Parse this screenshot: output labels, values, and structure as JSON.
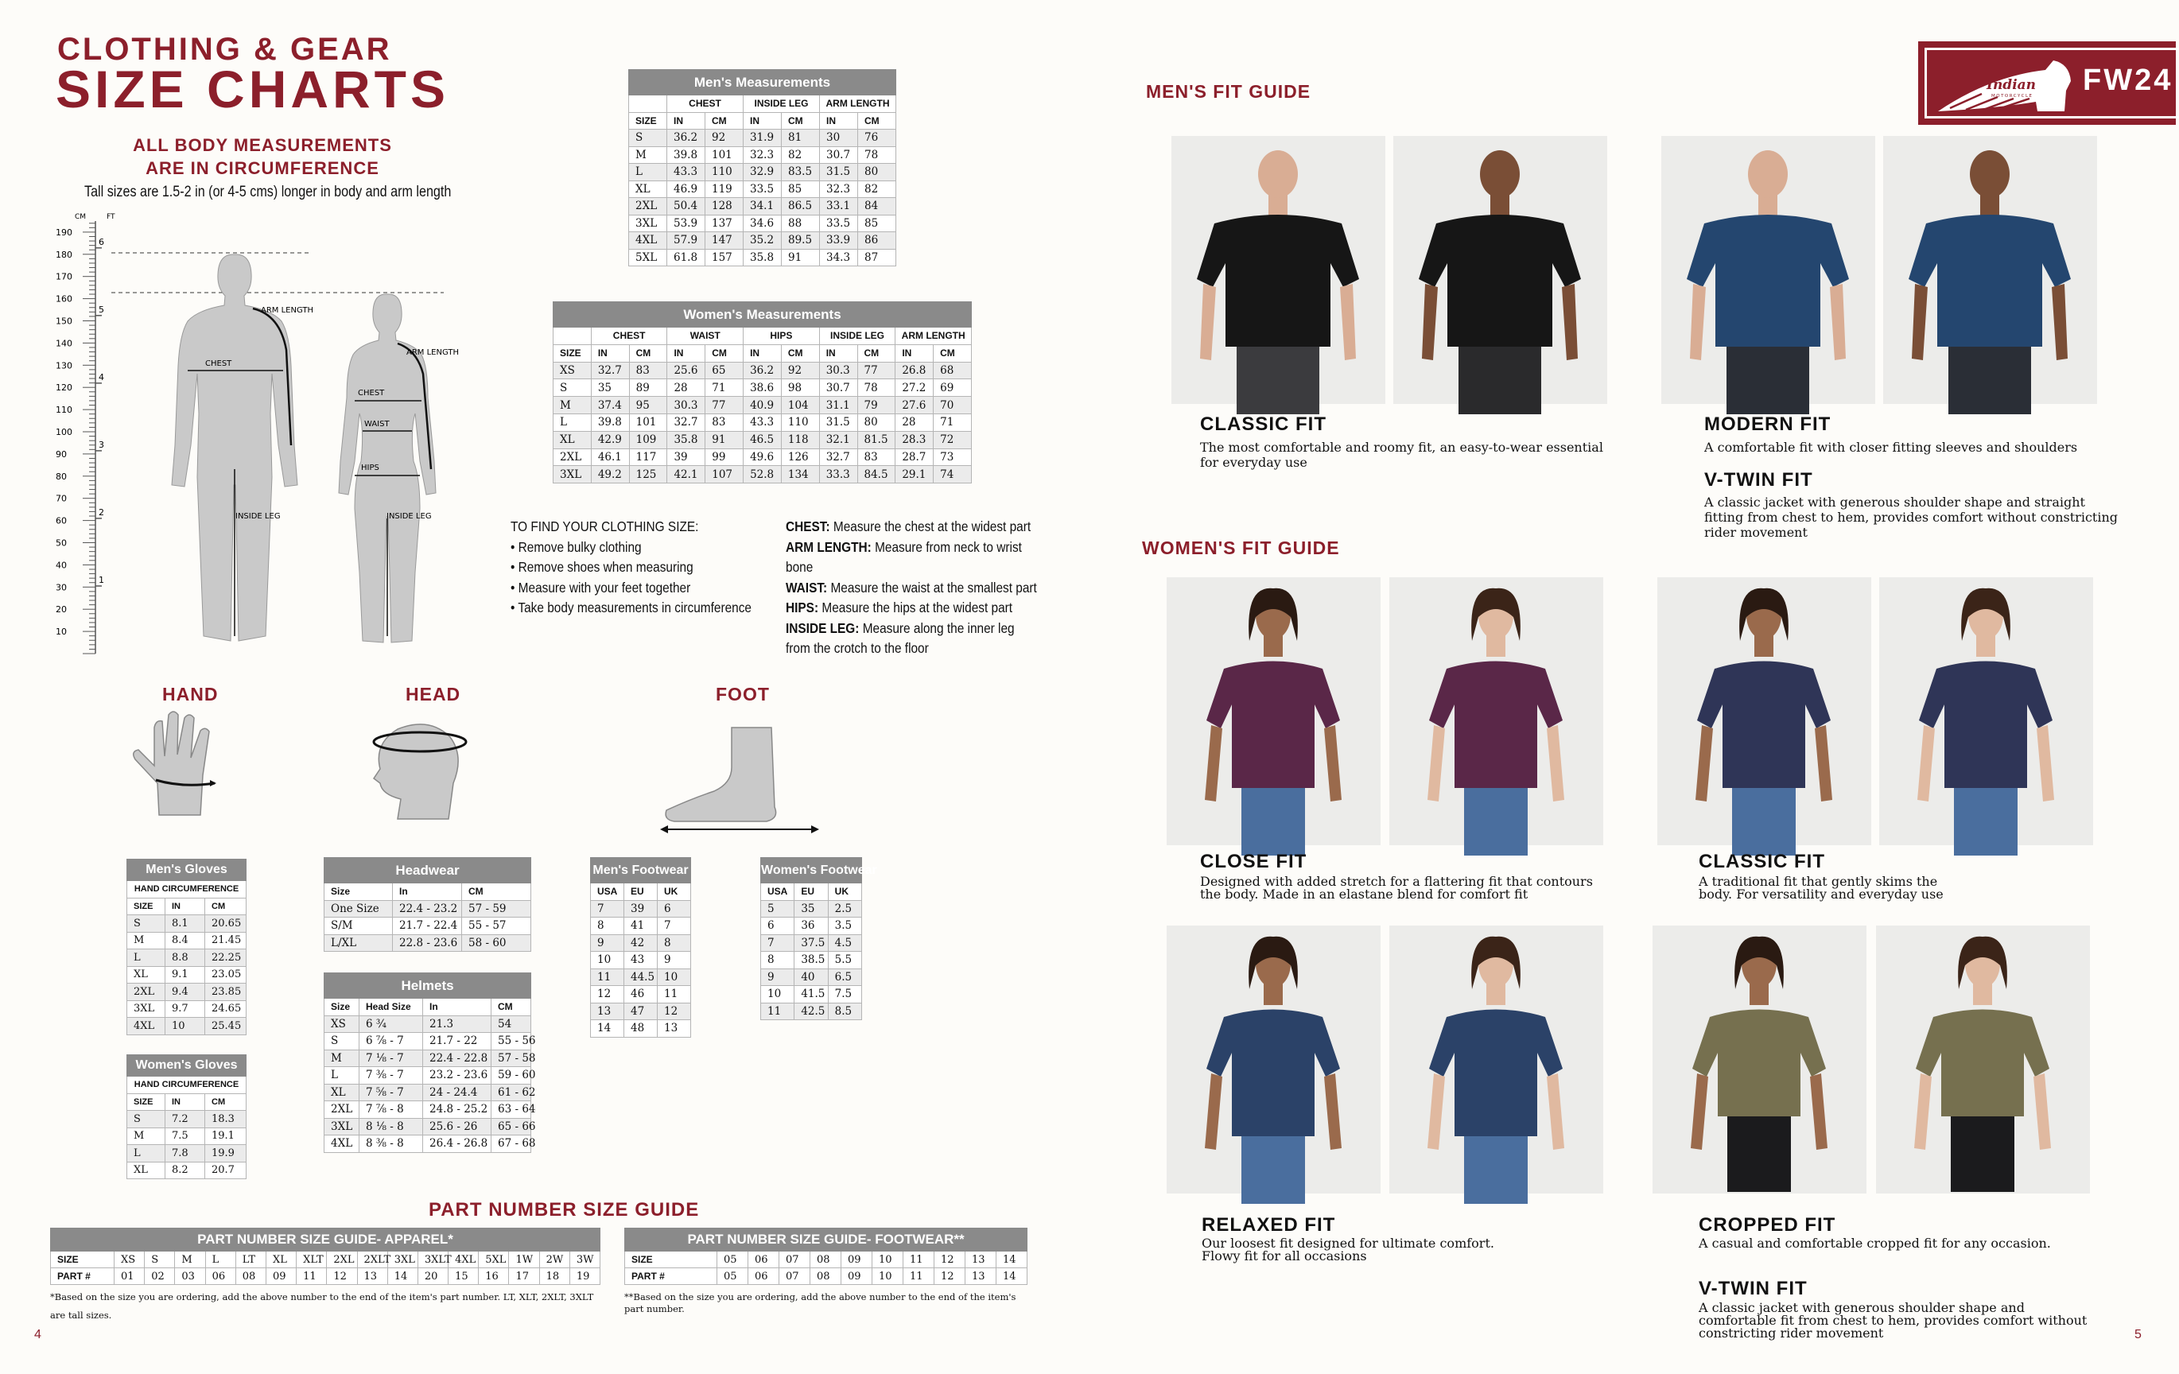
{
  "colors": {
    "brand_red": "#8c1f2b",
    "table_header": "#8a8a8a",
    "row_alt": "#ebebeb",
    "silhouette": "#c9c9c9"
  },
  "left_page": {
    "title_line1": "CLOTHING & GEAR",
    "title_line2": "SIZE CHARTS",
    "subtitle_line1": "ALL BODY MEASUREMENTS",
    "subtitle_line2": "ARE IN CIRCUMFERENCE",
    "tall_note": "Tall sizes are 1.5-2 in (or 4-5 cms) longer in body and arm  length",
    "page_number": "4"
  },
  "body_diagram": {
    "cm_label": "CM",
    "ft_label": "FT",
    "cm_ticks": [
      190,
      180,
      170,
      160,
      150,
      140,
      130,
      120,
      110,
      100,
      90,
      80,
      70,
      60,
      50,
      40,
      30,
      20,
      10
    ],
    "ft_ticks": [
      6,
      5,
      4,
      3,
      2,
      1
    ],
    "men_labels": {
      "arm_length": "ARM LENGTH",
      "chest": "CHEST",
      "inside_leg": "INSIDE LEG"
    },
    "women_labels": {
      "arm_length": "ARM LENGTH",
      "chest": "CHEST",
      "waist": "WAIST",
      "hips": "HIPS",
      "inside_leg": "INSIDE LEG"
    }
  },
  "mens_measurements": {
    "title": "Men's Measurements",
    "groups": [
      {
        "label": "",
        "span": 1
      },
      {
        "label": "CHEST",
        "span": 2
      },
      {
        "label": "INSIDE LEG",
        "span": 2
      },
      {
        "label": "ARM LENGTH",
        "span": 2
      }
    ],
    "header": [
      "SIZE",
      "IN",
      "CM",
      "IN",
      "CM",
      "IN",
      "CM"
    ],
    "rows": [
      [
        "S",
        "36.2",
        "92",
        "31.9",
        "81",
        "30",
        "76"
      ],
      [
        "M",
        "39.8",
        "101",
        "32.3",
        "82",
        "30.7",
        "78"
      ],
      [
        "L",
        "43.3",
        "110",
        "32.9",
        "83.5",
        "31.5",
        "80"
      ],
      [
        "XL",
        "46.9",
        "119",
        "33.5",
        "85",
        "32.3",
        "82"
      ],
      [
        "2XL",
        "50.4",
        "128",
        "34.1",
        "86.5",
        "33.1",
        "84"
      ],
      [
        "3XL",
        "53.9",
        "137",
        "34.6",
        "88",
        "33.5",
        "85"
      ],
      [
        "4XL",
        "57.9",
        "147",
        "35.2",
        "89.5",
        "33.9",
        "86"
      ],
      [
        "5XL",
        "61.8",
        "157",
        "35.8",
        "91",
        "34.3",
        "87"
      ]
    ]
  },
  "womens_measurements": {
    "title": "Women's Measurements",
    "groups": [
      {
        "label": "",
        "span": 1
      },
      {
        "label": "CHEST",
        "span": 2
      },
      {
        "label": "WAIST",
        "span": 2
      },
      {
        "label": "HIPS",
        "span": 2
      },
      {
        "label": "INSIDE LEG",
        "span": 2
      },
      {
        "label": "ARM LENGTH",
        "span": 2
      }
    ],
    "header": [
      "SIZE",
      "IN",
      "CM",
      "IN",
      "CM",
      "IN",
      "CM",
      "IN",
      "CM",
      "IN",
      "CM"
    ],
    "rows": [
      [
        "XS",
        "32.7",
        "83",
        "25.6",
        "65",
        "36.2",
        "92",
        "30.3",
        "77",
        "26.8",
        "68"
      ],
      [
        "S",
        "35",
        "89",
        "28",
        "71",
        "38.6",
        "98",
        "30.7",
        "78",
        "27.2",
        "69"
      ],
      [
        "M",
        "37.4",
        "95",
        "30.3",
        "77",
        "40.9",
        "104",
        "31.1",
        "79",
        "27.6",
        "70"
      ],
      [
        "L",
        "39.8",
        "101",
        "32.7",
        "83",
        "43.3",
        "110",
        "31.5",
        "80",
        "28",
        "71"
      ],
      [
        "XL",
        "42.9",
        "109",
        "35.8",
        "91",
        "46.5",
        "118",
        "32.1",
        "81.5",
        "28.3",
        "72"
      ],
      [
        "2XL",
        "46.1",
        "117",
        "39",
        "99",
        "49.6",
        "126",
        "32.7",
        "83",
        "28.7",
        "73"
      ],
      [
        "3XL",
        "49.2",
        "125",
        "42.1",
        "107",
        "52.8",
        "134",
        "33.3",
        "84.5",
        "29.1",
        "74"
      ]
    ]
  },
  "instructions": {
    "heading": "TO FIND YOUR CLOTHING SIZE:",
    "steps": [
      "• Remove bulky clothing",
      "• Remove shoes when measuring",
      "• Measure with your feet together",
      "• Take body measurements in circumference"
    ],
    "definitions": [
      {
        "label": "CHEST:",
        "text": " Measure the chest at the widest part"
      },
      {
        "label": "ARM LENGTH:",
        "text": " Measure from neck to wrist bone"
      },
      {
        "label": "WAIST:",
        "text": " Measure the waist at the smallest part"
      },
      {
        "label": "HIPS:",
        "text": " Measure the hips at the widest part"
      },
      {
        "label": "INSIDE LEG:",
        "text": " Measure along the inner leg from the crotch to the floor"
      }
    ]
  },
  "sections": {
    "hand": "HAND",
    "head": "HEAD",
    "foot": "FOOT",
    "part_number": "PART NUMBER SIZE GUIDE"
  },
  "mens_gloves": {
    "title": "Men's Gloves",
    "subheader": "HAND CIRCUMFERENCE",
    "header": [
      "SIZE",
      "IN",
      "CM"
    ],
    "rows": [
      [
        "S",
        "8.1",
        "20.65"
      ],
      [
        "M",
        "8.4",
        "21.45"
      ],
      [
        "L",
        "8.8",
        "22.25"
      ],
      [
        "XL",
        "9.1",
        "23.05"
      ],
      [
        "2XL",
        "9.4",
        "23.85"
      ],
      [
        "3XL",
        "9.7",
        "24.65"
      ],
      [
        "4XL",
        "10",
        "25.45"
      ]
    ]
  },
  "womens_gloves": {
    "title": "Women's Gloves",
    "subheader": "HAND CIRCUMFERENCE",
    "header": [
      "SIZE",
      "IN",
      "CM"
    ],
    "rows": [
      [
        "S",
        "7.2",
        "18.3"
      ],
      [
        "M",
        "7.5",
        "19.1"
      ],
      [
        "L",
        "7.8",
        "19.9"
      ],
      [
        "XL",
        "8.2",
        "20.7"
      ]
    ]
  },
  "headwear": {
    "title": "Headwear",
    "header": [
      "Size",
      "In",
      "CM"
    ],
    "rows": [
      [
        "One Size",
        "22.4 - 23.2",
        "57 - 59"
      ],
      [
        "S/M",
        "21.7 - 22.4",
        "55 - 57"
      ],
      [
        "L/XL",
        "22.8 - 23.6",
        "58 - 60"
      ]
    ]
  },
  "helmets": {
    "title": "Helmets",
    "header": [
      "Size",
      "Head Size",
      "In",
      "CM"
    ],
    "rows": [
      [
        "XS",
        "6 ¾",
        "21.3",
        "54"
      ],
      [
        "S",
        "6 ⅞ - 7",
        "21.7 - 22",
        "55 - 56"
      ],
      [
        "M",
        "7 ⅛ - 7",
        "22.4 - 22.8",
        "57 - 58"
      ],
      [
        "L",
        "7 ⅜ - 7",
        "23.2 - 23.6",
        "59 - 60"
      ],
      [
        "XL",
        "7 ⅝ - 7",
        "24 - 24.4",
        "61 - 62"
      ],
      [
        "2XL",
        "7 ⅞ - 8",
        "24.8 - 25.2",
        "63 - 64"
      ],
      [
        "3XL",
        "8 ⅛ - 8",
        "25.6 - 26",
        "65 - 66"
      ],
      [
        "4XL",
        "8 ⅜ - 8",
        "26.4 - 26.8",
        "67 - 68"
      ]
    ]
  },
  "mens_footwear": {
    "title": "Men's Footwear",
    "header": [
      "USA",
      "EU",
      "UK"
    ],
    "rows": [
      [
        "7",
        "39",
        "6"
      ],
      [
        "8",
        "41",
        "7"
      ],
      [
        "9",
        "42",
        "8"
      ],
      [
        "10",
        "43",
        "9"
      ],
      [
        "11",
        "44.5",
        "10"
      ],
      [
        "12",
        "46",
        "11"
      ],
      [
        "13",
        "47",
        "12"
      ],
      [
        "14",
        "48",
        "13"
      ]
    ]
  },
  "womens_footwear": {
    "title": "Women's Footwear",
    "header": [
      "USA",
      "EU",
      "UK"
    ],
    "rows": [
      [
        "5",
        "35",
        "2.5"
      ],
      [
        "6",
        "36",
        "3.5"
      ],
      [
        "7",
        "37.5",
        "4.5"
      ],
      [
        "8",
        "38.5",
        "5.5"
      ],
      [
        "9",
        "40",
        "6.5"
      ],
      [
        "10",
        "41.5",
        "7.5"
      ],
      [
        "11",
        "42.5",
        "8.5"
      ]
    ]
  },
  "part_apparel": {
    "title": "PART NUMBER SIZE GUIDE- APPAREL*",
    "rows": [
      [
        "SIZE",
        "XS",
        "S",
        "M",
        "L",
        "LT",
        "XL",
        "XLT",
        "2XL",
        "2XLT",
        "3XL",
        "3XLT",
        "4XL",
        "5XL",
        "1W",
        "2W",
        "3W"
      ],
      [
        "PART #",
        "01",
        "02",
        "03",
        "06",
        "08",
        "09",
        "11",
        "12",
        "13",
        "14",
        "20",
        "15",
        "16",
        "17",
        "18",
        "19"
      ]
    ],
    "note": "*Based on the size you are ordering, add the above number to the end of the item's part number. LT, XLT, 2XLT, 3XLT are tall sizes."
  },
  "part_footwear": {
    "title": "PART NUMBER SIZE GUIDE- FOOTWEAR**",
    "rows": [
      [
        "SIZE",
        "05",
        "06",
        "07",
        "08",
        "09",
        "10",
        "11",
        "12",
        "13",
        "14"
      ],
      [
        "PART #",
        "05",
        "06",
        "07",
        "08",
        "09",
        "10",
        "11",
        "12",
        "13",
        "14"
      ]
    ],
    "note": "**Based on the size you are ordering, add the above number to the end of the item's part number."
  },
  "right_page": {
    "logo_text": "Indian",
    "logo_subtext": "MOTORCYCLE",
    "season": "FW24",
    "page_number": "5",
    "mens_heading": "MEN'S FIT GUIDE",
    "womens_heading": "WOMEN'S FIT GUIDE",
    "fits": {
      "men_classic": {
        "title": "CLASSIC FIT",
        "desc": "The most comfortable and roomy fit, an easy-to-wear essential for everyday use"
      },
      "men_modern": {
        "title": "MODERN FIT",
        "desc": "A comfortable fit with closer fitting sleeves and shoulders"
      },
      "men_vtwin": {
        "title": "V-TWIN FIT",
        "desc": "A classic jacket with generous shoulder shape and straight fitting from chest to hem, provides comfort without constricting rider movement"
      },
      "women_close": {
        "title": "CLOSE FIT",
        "desc": "Designed with added stretch for a flattering fit that contours the body. Made in an elastane blend for comfort fit"
      },
      "women_classic": {
        "title": "CLASSIC FIT",
        "desc": "A traditional fit that gently skims the body. For versatility and everyday use"
      },
      "women_relaxed": {
        "title": "RELAXED FIT",
        "desc": "Our loosest fit designed for ultimate comfort. Flowy fit for all occasions"
      },
      "women_cropped": {
        "title": "CROPPED FIT",
        "desc": "A casual and comfortable cropped fit for any occasion."
      },
      "women_vtwin": {
        "title": "V-TWIN FIT",
        "desc": "A classic jacket with generous shoulder shape and comfortable fit from chest to hem, provides comfort without constricting rider movement"
      }
    },
    "photos": [
      {
        "fit": "men-classic",
        "shirt": "#161616",
        "skin": "#d9ad94",
        "pants": "#3b3b3e",
        "gender": "m"
      },
      {
        "fit": "men-classic",
        "shirt": "#161616",
        "skin": "#7a4e36",
        "pants": "#2a2a2c",
        "gender": "m"
      },
      {
        "fit": "men-modern",
        "shirt": "#24466f",
        "skin": "#d9ad94",
        "pants": "#2a2e36",
        "gender": "m"
      },
      {
        "fit": "men-modern",
        "shirt": "#24466f",
        "skin": "#7a4e36",
        "pants": "#2a2e36",
        "gender": "m"
      },
      {
        "fit": "women-close",
        "shirt": "#5a2748",
        "skin": "#9a6a4c",
        "pants": "#4a6e9e",
        "gender": "w"
      },
      {
        "fit": "women-close",
        "shirt": "#5a2748",
        "skin": "#e0b9a0",
        "pants": "#4a6e9e",
        "gender": "w"
      },
      {
        "fit": "women-classic",
        "shirt": "#2f3557",
        "skin": "#9a6a4c",
        "pants": "#4a6e9e",
        "gender": "w"
      },
      {
        "fit": "women-classic",
        "shirt": "#2f3557",
        "skin": "#e0b9a0",
        "pants": "#4a6e9e",
        "gender": "w"
      },
      {
        "fit": "women-relaxed",
        "shirt": "#2b4268",
        "skin": "#9a6a4c",
        "pants": "#4a6e9e",
        "gender": "w"
      },
      {
        "fit": "women-relaxed",
        "shirt": "#2b4268",
        "skin": "#e0b9a0",
        "pants": "#4a6e9e",
        "gender": "w"
      },
      {
        "fit": "women-cropped",
        "shirt": "#76704f",
        "skin": "#9a6a4c",
        "pants": "#1b1b1d",
        "gender": "w"
      },
      {
        "fit": "women-cropped",
        "shirt": "#76704f",
        "skin": "#e0b9a0",
        "pants": "#1b1b1d",
        "gender": "w"
      }
    ]
  }
}
